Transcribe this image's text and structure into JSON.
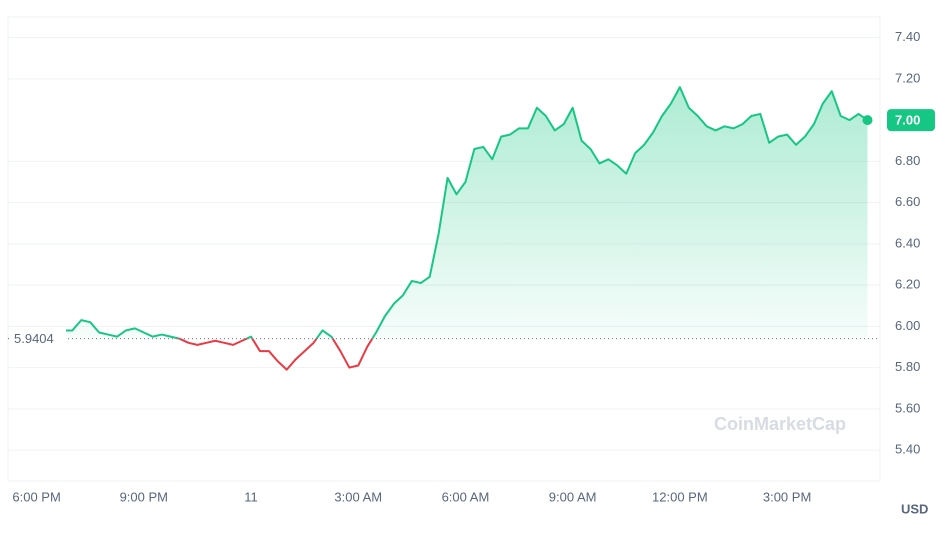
{
  "chart_data": {
    "type": "line",
    "x": [
      0.75,
      1,
      1.25,
      1.5,
      1.75,
      2,
      2.25,
      2.5,
      2.75,
      3,
      3.25,
      3.5,
      3.75,
      4,
      4.25,
      4.5,
      4.75,
      5,
      5.25,
      5.5,
      5.75,
      6,
      6.25,
      6.5,
      6.75,
      7,
      7.25,
      7.5,
      7.75,
      8,
      8.25,
      8.5,
      8.75,
      9,
      9.25,
      9.5,
      9.75,
      10,
      10.25,
      10.5,
      10.75,
      11,
      11.25,
      11.5,
      11.75,
      12,
      12.25,
      12.5,
      12.75,
      13,
      13.25,
      13.5,
      13.75,
      14,
      14.25,
      14.5,
      14.75,
      15,
      15.25,
      15.5,
      15.75,
      16,
      16.25,
      16.5,
      16.75,
      17,
      17.25,
      17.5,
      17.75,
      18,
      18.25,
      18.5,
      18.75,
      19,
      19.25,
      19.5,
      19.75,
      20,
      20.25,
      20.5,
      20.75,
      21,
      21.25,
      21.5,
      21.75,
      22,
      22.25,
      22.5,
      22.75,
      23,
      23.25
    ],
    "series": [
      {
        "values": [
          5.98,
          5.98,
          6.03,
          6.02,
          5.97,
          5.96,
          5.95,
          5.98,
          5.99,
          5.97,
          5.95,
          5.96,
          5.95,
          5.94,
          5.92,
          5.91,
          5.92,
          5.93,
          5.92,
          5.91,
          5.93,
          5.95,
          5.88,
          5.88,
          5.83,
          5.79,
          5.84,
          5.88,
          5.92,
          5.98,
          5.95,
          5.88,
          5.8,
          5.81,
          5.9,
          5.97,
          6.05,
          6.11,
          6.15,
          6.22,
          6.21,
          6.24,
          6.45,
          6.72,
          6.64,
          6.7,
          6.86,
          6.87,
          6.81,
          6.92,
          6.93,
          6.96,
          6.96,
          7.06,
          7.02,
          6.95,
          6.98,
          7.06,
          6.9,
          6.86,
          6.79,
          6.81,
          6.78,
          6.74,
          6.84,
          6.88,
          6.94,
          7.02,
          7.08,
          7.16,
          7.06,
          7.02,
          6.97,
          6.95,
          6.97,
          6.96,
          6.98,
          7.02,
          7.03,
          6.89,
          6.92,
          6.93,
          6.88,
          6.92,
          6.98,
          7.08,
          7.14,
          7.02,
          7.0,
          7.03,
          7.0
        ],
        "color": "#16c784",
        "color_below": "#ea3943"
      }
    ],
    "reference_line": 5.9404,
    "last_price_label": {
      "value": 7,
      "label": "7.00"
    },
    "xlim": [
      -0.8,
      23.6
    ],
    "xticks": [
      {
        "value": 0,
        "label": "6:00 PM"
      },
      {
        "value": 3,
        "label": "9:00 PM"
      },
      {
        "value": 6,
        "label": "11"
      },
      {
        "value": 9,
        "label": "3:00 AM"
      },
      {
        "value": 12,
        "label": "6:00 AM"
      },
      {
        "value": 15,
        "label": "9:00 AM"
      },
      {
        "value": 18,
        "label": "12:00 PM"
      },
      {
        "value": 21,
        "label": "3:00 PM"
      }
    ],
    "ylim": [
      5.25,
      7.5
    ],
    "yticks": [
      {
        "value": 5.4,
        "label": "5.40"
      },
      {
        "value": 5.6,
        "label": "5.60"
      },
      {
        "value": 5.8,
        "label": "5.80"
      },
      {
        "value": 6,
        "label": "6.00"
      },
      {
        "value": 6.2,
        "label": "6.20"
      },
      {
        "value": 6.4,
        "label": "6.40"
      },
      {
        "value": 6.6,
        "label": "6.60"
      },
      {
        "value": 6.8,
        "label": "6.80"
      },
      {
        "value": 7.2,
        "label": "7.20"
      },
      {
        "value": 7.4,
        "label": "7.40"
      }
    ],
    "currency": "USD",
    "watermark": "CoinMarketCap",
    "grid": true
  }
}
